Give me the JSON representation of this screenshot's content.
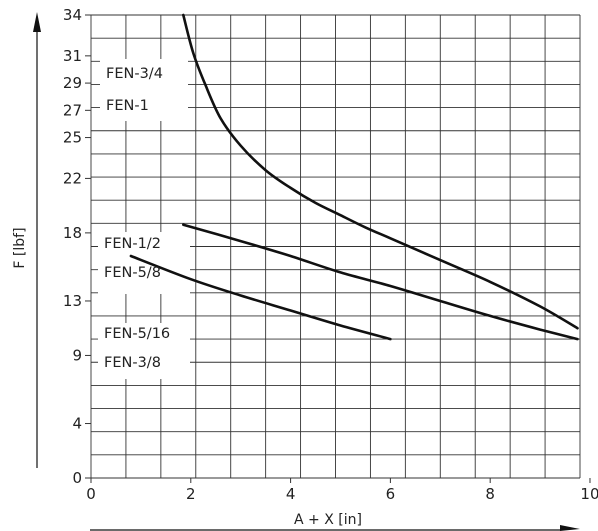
{
  "chart_data": {
    "type": "line",
    "xlabel": "A + X [in]",
    "ylabel": "F [lbf]",
    "xlim": [
      0,
      10
    ],
    "ylim": [
      0,
      34
    ],
    "x_ticks": [
      0,
      2,
      4,
      6,
      8,
      10
    ],
    "x_tick_labels": [
      "0",
      "2",
      "4",
      "6",
      "8",
      "10"
    ],
    "y_ticks": [
      0,
      4,
      9,
      13,
      18,
      22,
      25,
      27,
      29,
      31,
      34
    ],
    "y_tick_labels": [
      "0",
      "4",
      "9",
      "13",
      "18",
      "22",
      "25",
      "27",
      "29",
      "31",
      "34"
    ],
    "grid": true,
    "series": [
      {
        "labels": [
          "FEN-3/4",
          "FEN-1"
        ],
        "points": [
          [
            1.85,
            34
          ],
          [
            2.05,
            31.2
          ],
          [
            2.3,
            28.8
          ],
          [
            2.6,
            26.4
          ],
          [
            3.0,
            24.4
          ],
          [
            3.5,
            22.6
          ],
          [
            4.0,
            21.3
          ],
          [
            4.5,
            20.2
          ],
          [
            5.0,
            19.3
          ],
          [
            5.5,
            18.4
          ],
          [
            6.0,
            17.6
          ],
          [
            7.0,
            16.0
          ],
          [
            8.0,
            14.4
          ],
          [
            9.0,
            12.6
          ],
          [
            9.75,
            11.0
          ]
        ]
      },
      {
        "labels": [
          "FEN-1/2",
          "FEN-5/8"
        ],
        "points": [
          [
            1.85,
            18.6
          ],
          [
            3.0,
            17.4
          ],
          [
            4.0,
            16.3
          ],
          [
            5.0,
            15.1
          ],
          [
            6.0,
            14.1
          ],
          [
            7.0,
            13.0
          ],
          [
            8.0,
            11.9
          ],
          [
            9.0,
            10.9
          ],
          [
            9.75,
            10.2
          ]
        ]
      },
      {
        "labels": [
          "FEN-5/16",
          "FEN-3/8"
        ],
        "points": [
          [
            0.8,
            16.3
          ],
          [
            2.0,
            14.6
          ],
          [
            3.0,
            13.4
          ],
          [
            4.0,
            12.3
          ],
          [
            5.0,
            11.2
          ],
          [
            6.0,
            10.2
          ]
        ]
      }
    ]
  }
}
